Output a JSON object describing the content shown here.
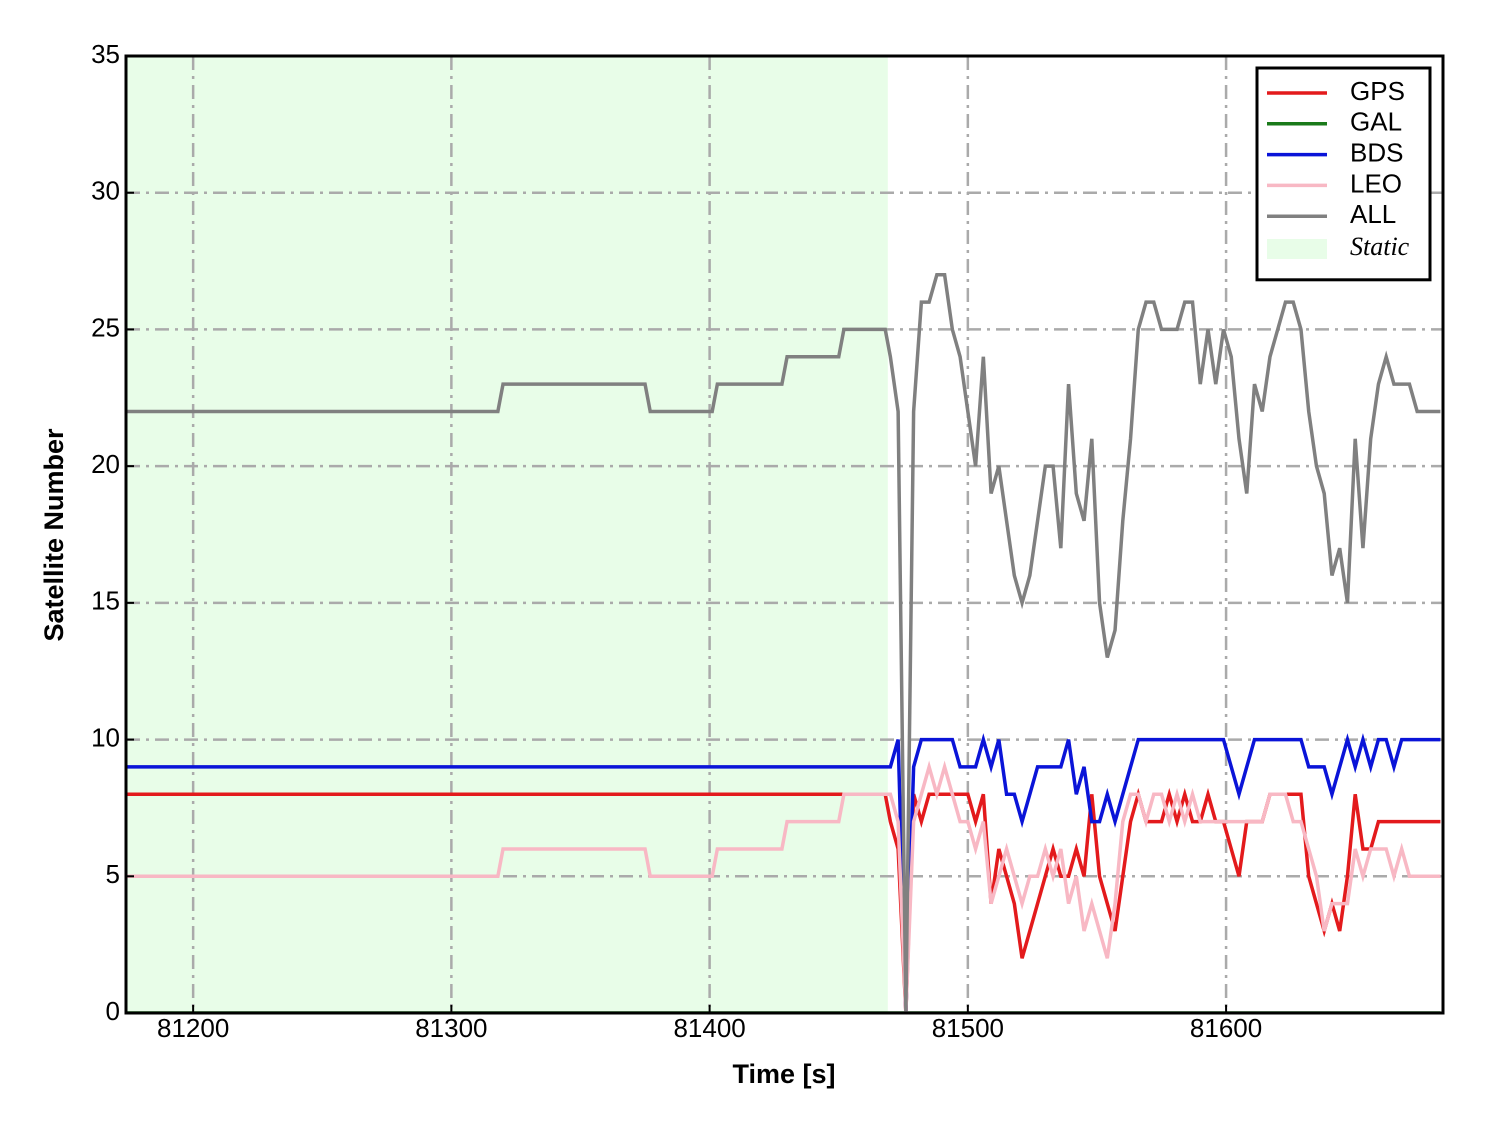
{
  "chart_data": {
    "type": "line",
    "xlabel": "Time [s]",
    "ylabel": "Satellite Number",
    "xlim": [
      81174,
      81684
    ],
    "ylim": [
      0,
      35
    ],
    "xticks": [
      81200,
      81300,
      81400,
      81500,
      81600
    ],
    "yticks": [
      0,
      5,
      10,
      15,
      20,
      25,
      30,
      35
    ],
    "grid": true,
    "legend": "upper right",
    "shaded_region": {
      "label": "Static",
      "xlim": [
        81174,
        81469
      ],
      "color": "#e8fde8"
    },
    "x": [
      81174,
      81318,
      81320,
      81375,
      81377,
      81401,
      81403,
      81428,
      81430,
      81450,
      81452,
      81468,
      81470,
      81473,
      81476,
      81479,
      81482,
      81485,
      81488,
      81491,
      81494,
      81497,
      81500,
      81503,
      81506,
      81509,
      81512,
      81515,
      81518,
      81521,
      81524,
      81527,
      81530,
      81533,
      81536,
      81539,
      81542,
      81545,
      81548,
      81551,
      81554,
      81557,
      81560,
      81563,
      81566,
      81569,
      81572,
      81575,
      81578,
      81581,
      81584,
      81587,
      81590,
      81593,
      81596,
      81599,
      81602,
      81605,
      81608,
      81611,
      81614,
      81617,
      81620,
      81623,
      81626,
      81629,
      81632,
      81635,
      81638,
      81641,
      81644,
      81647,
      81650,
      81653,
      81656,
      81659,
      81662,
      81665,
      81668,
      81671,
      81674,
      81677,
      81680,
      81683
    ],
    "series": [
      {
        "name": "GPS",
        "color": "#e31a1c",
        "values": [
          8,
          8,
          8,
          8,
          8,
          8,
          8,
          8,
          8,
          8,
          8,
          8,
          7,
          6,
          0,
          8,
          7,
          8,
          8,
          8,
          8,
          8,
          8,
          7,
          8,
          4,
          6,
          5,
          4,
          2,
          3,
          4,
          5,
          6,
          5,
          5,
          6,
          5,
          8,
          5,
          4,
          3,
          5,
          7,
          8,
          7,
          7,
          7,
          8,
          7,
          8,
          7,
          7,
          8,
          7,
          7,
          6,
          5,
          7,
          7,
          7,
          8,
          8,
          8,
          8,
          8,
          5,
          4,
          3,
          4,
          3,
          5,
          8,
          6,
          6,
          7,
          7,
          7,
          7,
          7,
          7,
          7,
          7,
          7
        ]
      },
      {
        "name": "GAL",
        "color": "#1a7a1a",
        "values": [
          0,
          0,
          0,
          0,
          0,
          0,
          0,
          0,
          0,
          0,
          0,
          0,
          0,
          0,
          0,
          0,
          0,
          0,
          0,
          0,
          0,
          0,
          0,
          0,
          0,
          0,
          0,
          0,
          0,
          0,
          0,
          0,
          0,
          0,
          0,
          0,
          0,
          0,
          0,
          0,
          0,
          0,
          0,
          0,
          0,
          0,
          0,
          0,
          0,
          0,
          0,
          0,
          0,
          0,
          0,
          0,
          0,
          0,
          0,
          0,
          0,
          0,
          0,
          0,
          0,
          0,
          0,
          0,
          0,
          0,
          0,
          0,
          0,
          0,
          0,
          0,
          0,
          0,
          0,
          0,
          0,
          0,
          0,
          0
        ]
      },
      {
        "name": "BDS",
        "color": "#0a14d8",
        "values": [
          9,
          9,
          9,
          9,
          9,
          9,
          9,
          9,
          9,
          9,
          9,
          9,
          9,
          10,
          0,
          9,
          10,
          10,
          10,
          10,
          10,
          9,
          9,
          9,
          10,
          9,
          10,
          8,
          8,
          7,
          8,
          9,
          9,
          9,
          9,
          10,
          8,
          9,
          7,
          7,
          8,
          7,
          8,
          9,
          10,
          10,
          10,
          10,
          10,
          10,
          10,
          10,
          10,
          10,
          10,
          10,
          9,
          8,
          9,
          10,
          10,
          10,
          10,
          10,
          10,
          10,
          9,
          9,
          9,
          8,
          9,
          10,
          9,
          10,
          9,
          10,
          10,
          9,
          10,
          10,
          10,
          10,
          10,
          10
        ]
      },
      {
        "name": "LEO",
        "color": "#f8b8c4",
        "values": [
          5,
          5,
          6,
          6,
          5,
          5,
          6,
          6,
          7,
          7,
          8,
          8,
          8,
          7,
          0,
          7,
          8,
          9,
          8,
          9,
          8,
          7,
          7,
          6,
          7,
          4,
          5,
          6,
          5,
          4,
          5,
          5,
          6,
          5,
          6,
          4,
          5,
          3,
          4,
          3,
          2,
          4,
          7,
          8,
          8,
          7,
          8,
          8,
          7,
          8,
          7,
          8,
          7,
          7,
          7,
          7,
          7,
          7,
          7,
          7,
          7,
          8,
          8,
          8,
          7,
          7,
          6,
          5,
          3,
          4,
          4,
          4,
          6,
          5,
          6,
          6,
          6,
          5,
          6,
          5,
          5,
          5,
          5,
          5
        ]
      },
      {
        "name": "ALL",
        "color": "#808080",
        "values": [
          22,
          22,
          23,
          23,
          22,
          22,
          23,
          23,
          24,
          24,
          25,
          25,
          24,
          22,
          0,
          22,
          26,
          26,
          27,
          27,
          25,
          24,
          22,
          20,
          24,
          19,
          20,
          18,
          16,
          15,
          16,
          18,
          20,
          20,
          17,
          23,
          19,
          18,
          21,
          15,
          13,
          14,
          18,
          21,
          25,
          26,
          26,
          25,
          25,
          25,
          26,
          26,
          23,
          25,
          23,
          25,
          24,
          21,
          19,
          23,
          22,
          24,
          25,
          26,
          26,
          25,
          22,
          20,
          19,
          16,
          17,
          15,
          21,
          17,
          21,
          23,
          24,
          23,
          23,
          23,
          22,
          22,
          22,
          22
        ]
      }
    ]
  }
}
